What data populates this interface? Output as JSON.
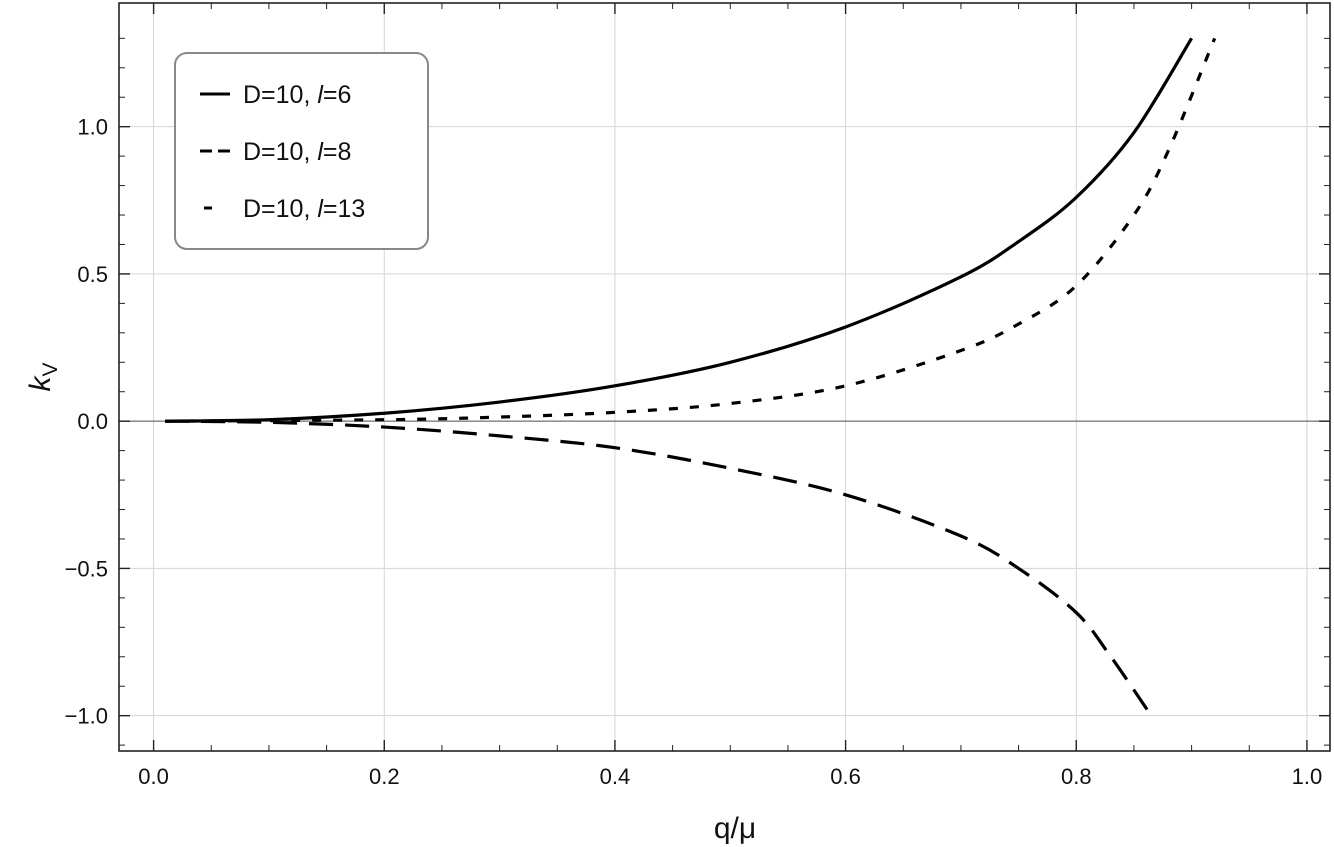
{
  "chart_data": {
    "type": "line",
    "xlabel": "q/μ",
    "ylabel_main": "k",
    "ylabel_sub": "V",
    "xlim": [
      -0.03,
      1.02
    ],
    "ylim": [
      -1.12,
      1.42
    ],
    "x_ticks": [
      {
        "value": 0.0,
        "label": "0.0"
      },
      {
        "value": 0.2,
        "label": "0.2"
      },
      {
        "value": 0.4,
        "label": "0.4"
      },
      {
        "value": 0.6,
        "label": "0.6"
      },
      {
        "value": 0.8,
        "label": "0.8"
      },
      {
        "value": 1.0,
        "label": "1.0"
      }
    ],
    "y_ticks": [
      {
        "value": -1.0,
        "label": "−1.0"
      },
      {
        "value": -0.5,
        "label": "−0.5"
      },
      {
        "value": 0.0,
        "label": "0.0"
      },
      {
        "value": 0.5,
        "label": "0.5"
      },
      {
        "value": 1.0,
        "label": "1.0"
      }
    ],
    "grid": true,
    "legend_position": "top-left",
    "series": [
      {
        "name": "D=10, l=6",
        "legend_prefix": "D=10, ",
        "legend_l": "l",
        "legend_suffix": "=6",
        "style": "solid",
        "x": [
          0.01,
          0.1,
          0.2,
          0.3,
          0.4,
          0.5,
          0.6,
          0.7,
          0.75,
          0.8,
          0.85,
          0.9
        ],
        "y": [
          0.0,
          0.005,
          0.027,
          0.065,
          0.12,
          0.2,
          0.32,
          0.49,
          0.61,
          0.76,
          0.98,
          1.3
        ]
      },
      {
        "name": "D=10, l=8",
        "legend_prefix": "D=10, ",
        "legend_l": "l",
        "legend_suffix": "=8",
        "style": "long-dash",
        "x": [
          0.01,
          0.1,
          0.2,
          0.3,
          0.4,
          0.5,
          0.6,
          0.7,
          0.75,
          0.8,
          0.83,
          0.865
        ],
        "y": [
          0.0,
          -0.004,
          -0.02,
          -0.05,
          -0.09,
          -0.16,
          -0.25,
          -0.39,
          -0.5,
          -0.65,
          -0.8,
          -1.0
        ]
      },
      {
        "name": "D=10, l=13",
        "legend_prefix": "D=10, ",
        "legend_l": "l",
        "legend_suffix": "=13",
        "style": "short-dash",
        "x": [
          0.01,
          0.2,
          0.3,
          0.4,
          0.5,
          0.6,
          0.7,
          0.75,
          0.8,
          0.85,
          0.88,
          0.92
        ],
        "y": [
          0.0,
          0.005,
          0.014,
          0.03,
          0.06,
          0.12,
          0.24,
          0.33,
          0.46,
          0.7,
          0.92,
          1.3
        ]
      }
    ]
  }
}
